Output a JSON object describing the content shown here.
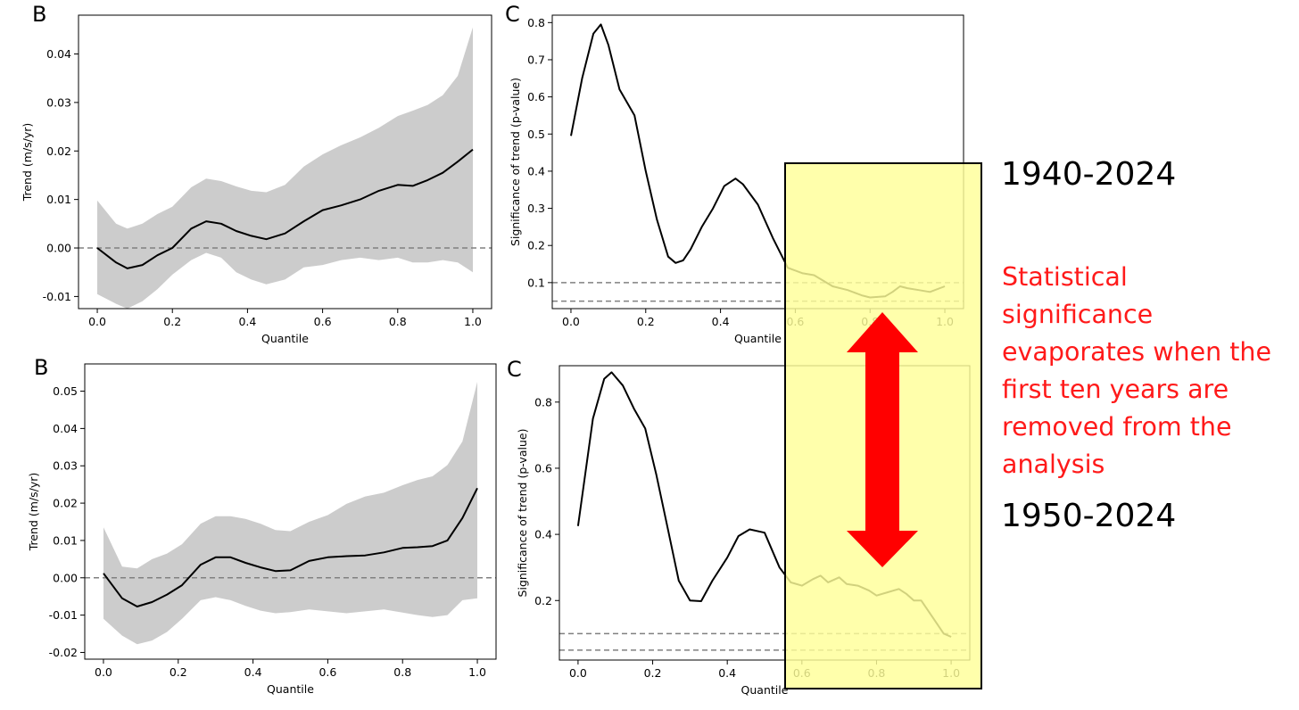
{
  "period_top": "1940-2024",
  "period_bottom": "1950-2024",
  "annotation": "Statistical significance evaporates when the first ten years are removed from the analysis",
  "colors": {
    "highlight_fill": "#ffff99",
    "highlight_border": "#000000",
    "arrow": "#ff0000",
    "annotation_text": "#ff1a1a",
    "band": "#cccccc",
    "line": "#000000",
    "ref_line": "#808080"
  },
  "chart_data": [
    {
      "id": "top-trend",
      "panel": "B",
      "type": "area",
      "xlabel": "Quantile",
      "ylabel": "Trend (m/s/yr)",
      "xlim": [
        -0.05,
        1.05
      ],
      "ylim": [
        -0.0125,
        0.048
      ],
      "xticks": [
        0.0,
        0.2,
        0.4,
        0.6,
        0.8,
        1.0
      ],
      "yticks": [
        -0.01,
        0.0,
        0.01,
        0.02,
        0.03,
        0.04
      ],
      "tick_decimals": 2,
      "hlines": [
        0.0
      ],
      "x": [
        0.0,
        0.05,
        0.08,
        0.12,
        0.16,
        0.2,
        0.25,
        0.29,
        0.33,
        0.37,
        0.41,
        0.45,
        0.5,
        0.55,
        0.6,
        0.65,
        0.7,
        0.75,
        0.8,
        0.84,
        0.88,
        0.92,
        0.96,
        1.0
      ],
      "series": [
        {
          "values": [
            0.0,
            -0.003,
            -0.0042,
            -0.0035,
            -0.0015,
            0.0,
            0.004,
            0.0055,
            0.005,
            0.0035,
            0.0025,
            0.0018,
            0.003,
            0.0055,
            0.0078,
            0.0088,
            0.01,
            0.0118,
            0.013,
            0.0128,
            0.014,
            0.0155,
            0.0178,
            0.0203
          ]
        }
      ],
      "band_lower": [
        -0.0095,
        -0.0115,
        -0.0125,
        -0.011,
        -0.0085,
        -0.0055,
        -0.0025,
        -0.001,
        -0.002,
        -0.005,
        -0.0065,
        -0.0075,
        -0.0065,
        -0.004,
        -0.0035,
        -0.0025,
        -0.002,
        -0.0025,
        -0.002,
        -0.003,
        -0.003,
        -0.0025,
        -0.003,
        -0.005
      ],
      "band_upper": [
        0.0098,
        0.005,
        0.004,
        0.005,
        0.007,
        0.0085,
        0.0125,
        0.0143,
        0.0138,
        0.0127,
        0.0118,
        0.0115,
        0.013,
        0.0168,
        0.0193,
        0.0212,
        0.0228,
        0.0248,
        0.0272,
        0.0283,
        0.0295,
        0.0315,
        0.0355,
        0.0455
      ]
    },
    {
      "id": "top-pvalue",
      "panel": "C",
      "type": "line",
      "xlabel": "Quantile",
      "ylabel": "Significance of trend (p-value)",
      "xlim": [
        -0.05,
        1.05
      ],
      "ylim": [
        0.03,
        0.82
      ],
      "xticks": [
        0.0,
        0.2,
        0.4,
        0.6,
        0.8,
        1.0
      ],
      "yticks": [
        0.1,
        0.2,
        0.3,
        0.4,
        0.5,
        0.6,
        0.7,
        0.8
      ],
      "tick_decimals": 1,
      "hlines": [
        0.1,
        0.05
      ],
      "x": [
        0.0,
        0.03,
        0.06,
        0.08,
        0.1,
        0.13,
        0.17,
        0.2,
        0.23,
        0.26,
        0.28,
        0.3,
        0.32,
        0.35,
        0.38,
        0.41,
        0.44,
        0.46,
        0.5,
        0.54,
        0.58,
        0.62,
        0.65,
        0.7,
        0.74,
        0.78,
        0.8,
        0.84,
        0.86,
        0.88,
        0.9,
        0.93,
        0.96,
        1.0
      ],
      "series": [
        {
          "values": [
            0.495,
            0.65,
            0.77,
            0.795,
            0.74,
            0.62,
            0.55,
            0.4,
            0.27,
            0.17,
            0.153,
            0.16,
            0.19,
            0.25,
            0.3,
            0.36,
            0.38,
            0.365,
            0.31,
            0.22,
            0.14,
            0.125,
            0.12,
            0.09,
            0.08,
            0.065,
            0.06,
            0.063,
            0.075,
            0.09,
            0.085,
            0.08,
            0.075,
            0.09
          ]
        }
      ]
    },
    {
      "id": "bottom-trend",
      "panel": "B",
      "type": "area",
      "xlabel": "Quantile",
      "ylabel": "Trend (m/s/yr)",
      "xlim": [
        -0.05,
        1.05
      ],
      "ylim": [
        -0.0218,
        0.0573
      ],
      "xticks": [
        0.0,
        0.2,
        0.4,
        0.6,
        0.8,
        1.0
      ],
      "yticks": [
        -0.02,
        -0.01,
        0.0,
        0.01,
        0.02,
        0.03,
        0.04,
        0.05
      ],
      "tick_decimals": 2,
      "hlines": [
        0.0
      ],
      "x": [
        0.0,
        0.05,
        0.09,
        0.13,
        0.17,
        0.21,
        0.26,
        0.3,
        0.34,
        0.38,
        0.42,
        0.46,
        0.5,
        0.55,
        0.6,
        0.65,
        0.7,
        0.75,
        0.8,
        0.84,
        0.88,
        0.92,
        0.96,
        1.0
      ],
      "series": [
        {
          "values": [
            0.0012,
            -0.0055,
            -0.0077,
            -0.0065,
            -0.0045,
            -0.002,
            0.0035,
            0.0055,
            0.0055,
            0.004,
            0.0028,
            0.0018,
            0.002,
            0.0045,
            0.0055,
            0.0058,
            0.006,
            0.0068,
            0.008,
            0.0082,
            0.0085,
            0.01,
            0.016,
            0.024
          ]
        }
      ],
      "band_lower": [
        -0.011,
        -0.0155,
        -0.0178,
        -0.0168,
        -0.0145,
        -0.011,
        -0.006,
        -0.0052,
        -0.006,
        -0.0075,
        -0.0088,
        -0.0095,
        -0.0092,
        -0.0085,
        -0.009,
        -0.0095,
        -0.009,
        -0.0085,
        -0.0093,
        -0.01,
        -0.0105,
        -0.01,
        -0.006,
        -0.0055
      ],
      "band_upper": [
        0.0135,
        0.003,
        0.0025,
        0.005,
        0.0065,
        0.009,
        0.0145,
        0.0165,
        0.0165,
        0.0158,
        0.0145,
        0.0128,
        0.0125,
        0.015,
        0.0168,
        0.0198,
        0.0218,
        0.0228,
        0.0248,
        0.0262,
        0.0272,
        0.0302,
        0.0365,
        0.0525
      ]
    },
    {
      "id": "bottom-pvalue",
      "panel": "C",
      "type": "line",
      "xlabel": "Quantile",
      "ylabel": "Significance of trend (p-value)",
      "xlim": [
        -0.05,
        1.05
      ],
      "ylim": [
        0.02,
        0.91
      ],
      "xticks": [
        0.0,
        0.2,
        0.4,
        0.6,
        0.8,
        1.0
      ],
      "yticks": [
        0.2,
        0.4,
        0.6,
        0.8
      ],
      "tick_decimals": 1,
      "hlines": [
        0.1,
        0.05
      ],
      "x": [
        0.0,
        0.04,
        0.07,
        0.09,
        0.12,
        0.15,
        0.18,
        0.21,
        0.24,
        0.27,
        0.3,
        0.33,
        0.36,
        0.4,
        0.43,
        0.46,
        0.5,
        0.54,
        0.57,
        0.6,
        0.63,
        0.65,
        0.67,
        0.7,
        0.72,
        0.75,
        0.78,
        0.8,
        0.83,
        0.86,
        0.88,
        0.9,
        0.92,
        0.95,
        0.98,
        1.0
      ],
      "series": [
        {
          "values": [
            0.425,
            0.75,
            0.87,
            0.89,
            0.85,
            0.78,
            0.72,
            0.58,
            0.42,
            0.26,
            0.2,
            0.198,
            0.26,
            0.33,
            0.395,
            0.415,
            0.405,
            0.3,
            0.255,
            0.245,
            0.265,
            0.275,
            0.255,
            0.27,
            0.25,
            0.245,
            0.23,
            0.215,
            0.225,
            0.235,
            0.22,
            0.2,
            0.2,
            0.15,
            0.1,
            0.09
          ]
        }
      ]
    }
  ]
}
